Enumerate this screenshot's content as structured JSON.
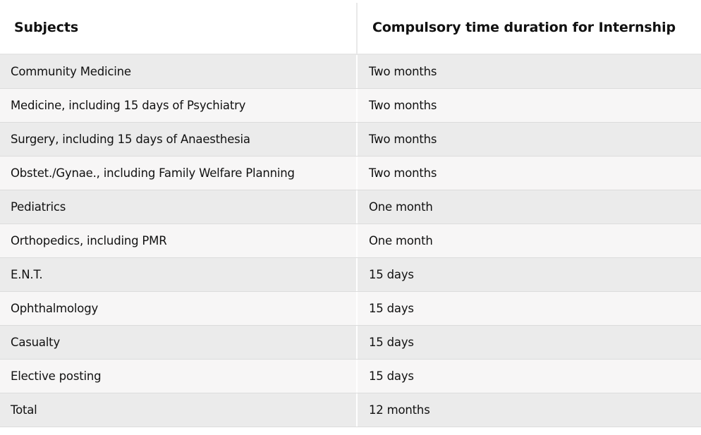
{
  "table": {
    "headers": [
      "Subjects",
      "Compulsory time duration for Internship"
    ],
    "rows": [
      [
        "Community Medicine",
        "Two months"
      ],
      [
        "Medicine, including 15 days of Psychiatry",
        "Two months"
      ],
      [
        "Surgery, including 15 days of Anaesthesia",
        "Two months"
      ],
      [
        "Obstet./Gynae., including Family Welfare Planning",
        "Two months"
      ],
      [
        "Pediatrics",
        "One month"
      ],
      [
        "Orthopedics, including PMR",
        "One month"
      ],
      [
        "E.N.T.",
        "15 days"
      ],
      [
        "Ophthalmology",
        "15 days"
      ],
      [
        "Casualty",
        "15 days"
      ],
      [
        "Elective posting",
        "15 days"
      ],
      [
        "Total",
        "12 months"
      ]
    ]
  },
  "colors": {
    "header_bg": "#ffffff",
    "row_odd_bg": "#ebebeb",
    "row_even_bg": "#f7f6f6",
    "divider": "#dcdcdc",
    "text": "#111111"
  }
}
